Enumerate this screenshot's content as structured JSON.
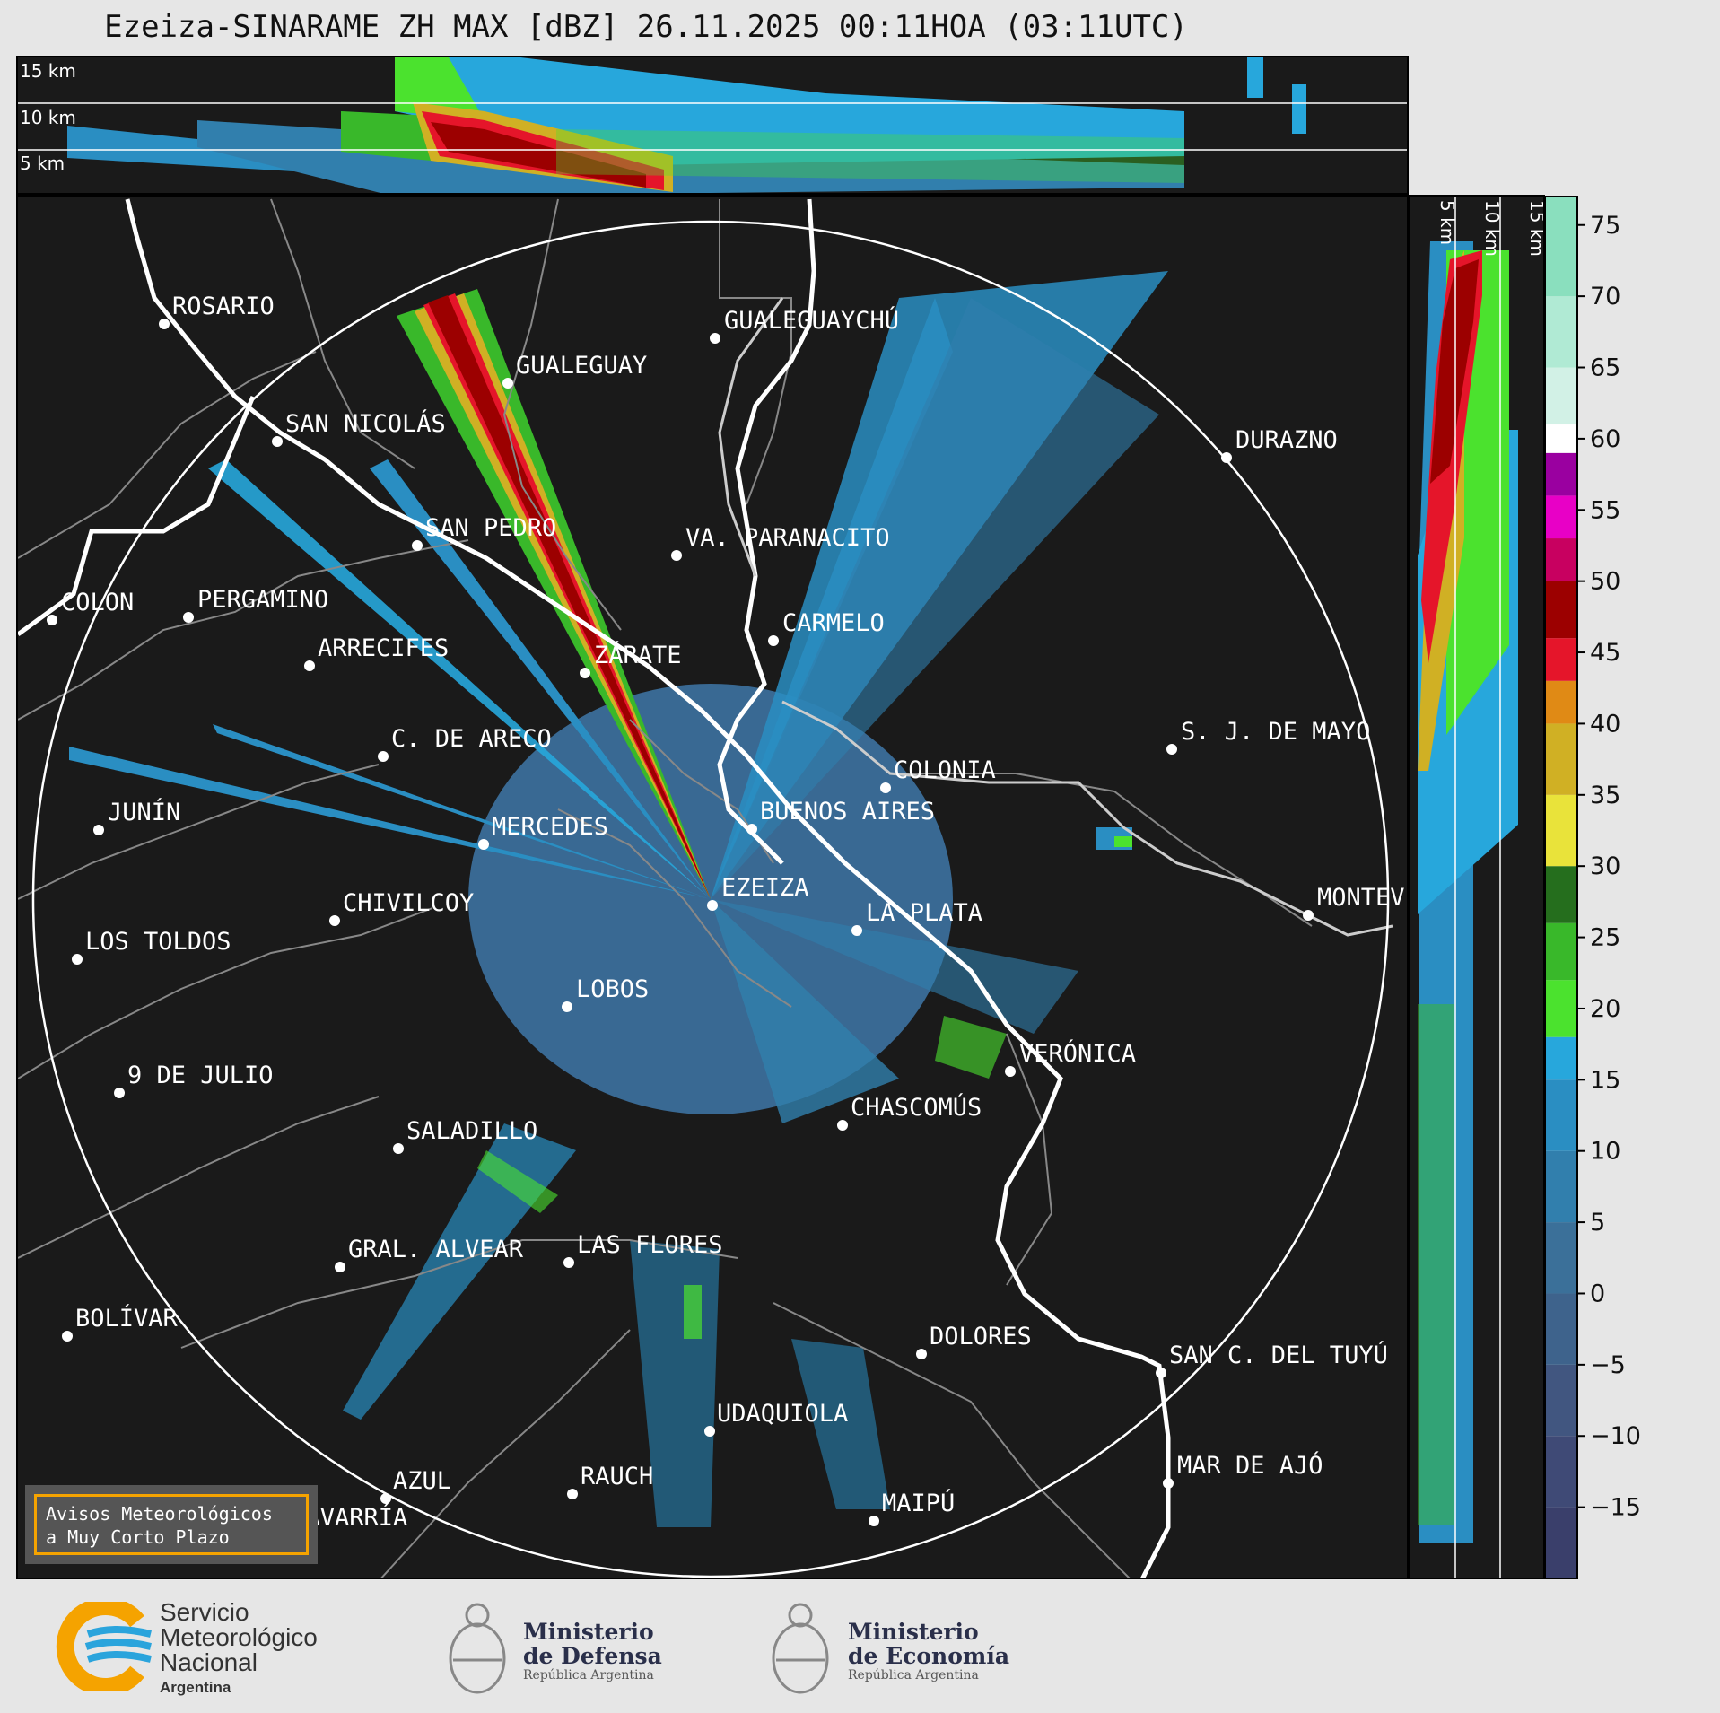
{
  "title": "Ezeiza-SINARAME ZH MAX [dBZ] 26.11.2025 00:11HOA (03:11UTC)",
  "top_panel": {
    "height_labels": [
      "15 km",
      "10 km",
      "5 km"
    ]
  },
  "side_panel": {
    "height_labels": [
      "5 km",
      "10 km",
      "15 km"
    ]
  },
  "cities": [
    {
      "name": "ROSARIO"
    },
    {
      "name": "GUALEGUAYCHÚ"
    },
    {
      "name": "GUALEGUAY"
    },
    {
      "name": "SAN NICOLÁS"
    },
    {
      "name": "DURAZNO"
    },
    {
      "name": "SAN PEDRO"
    },
    {
      "name": "VA. PARANACITO"
    },
    {
      "name": "COLON"
    },
    {
      "name": "PERGAMINO"
    },
    {
      "name": "CARMELO"
    },
    {
      "name": "ARRECIFES"
    },
    {
      "name": "ZÁRATE"
    },
    {
      "name": "C. DE ARECO"
    },
    {
      "name": "S. J. DE MAYO"
    },
    {
      "name": "COLONIA"
    },
    {
      "name": "JUNÍN"
    },
    {
      "name": "BUENOS AIRES"
    },
    {
      "name": "MERCEDES"
    },
    {
      "name": "MONTEVIDEO"
    },
    {
      "name": "CHIVILCOY"
    },
    {
      "name": "EZEIZA"
    },
    {
      "name": "LA PLATA"
    },
    {
      "name": "LOS TOLDOS"
    },
    {
      "name": "LOBOS"
    },
    {
      "name": "VERÓNICA"
    },
    {
      "name": "9 DE JULIO"
    },
    {
      "name": "CHASCOMÚS"
    },
    {
      "name": "SALADILLO"
    },
    {
      "name": "GRAL. ALVEAR"
    },
    {
      "name": "LAS FLORES"
    },
    {
      "name": "BOLÍVAR"
    },
    {
      "name": "DOLORES"
    },
    {
      "name": "SAN C. DEL TUYÚ"
    },
    {
      "name": "UDAQUIOLA"
    },
    {
      "name": "MAR DE AJÓ"
    },
    {
      "name": "AZUL"
    },
    {
      "name": "RAUCH"
    },
    {
      "name": "MAIPÚ"
    },
    {
      "name": "OLAVARRÍA"
    }
  ],
  "colorbar": {
    "unit": "dBZ",
    "ticks": [
      "75",
      "70",
      "65",
      "60",
      "55",
      "50",
      "45",
      "40",
      "35",
      "30",
      "25",
      "20",
      "15",
      "10",
      "5",
      "0",
      "−5",
      "−10",
      "−15"
    ],
    "bands": [
      {
        "from": -20,
        "to": -15,
        "color": "#3a3f6b"
      },
      {
        "from": -15,
        "to": -10,
        "color": "#3f4a76"
      },
      {
        "from": -10,
        "to": -5,
        "color": "#415680"
      },
      {
        "from": -5,
        "to": 0,
        "color": "#3e638c"
      },
      {
        "from": 0,
        "to": 5,
        "color": "#3b7099"
      },
      {
        "from": 5,
        "to": 10,
        "color": "#317fad"
      },
      {
        "from": 10,
        "to": 15,
        "color": "#2a8ec2"
      },
      {
        "from": 15,
        "to": 18,
        "color": "#27a7dc"
      },
      {
        "from": 18,
        "to": 22,
        "color": "#4be22e"
      },
      {
        "from": 22,
        "to": 26,
        "color": "#39b82a"
      },
      {
        "from": 26,
        "to": 30,
        "color": "#256e1d"
      },
      {
        "from": 30,
        "to": 35,
        "color": "#e9e33a"
      },
      {
        "from": 35,
        "to": 40,
        "color": "#d0b024"
      },
      {
        "from": 40,
        "to": 43,
        "color": "#e08a15"
      },
      {
        "from": 43,
        "to": 46,
        "color": "#e5152a"
      },
      {
        "from": 46,
        "to": 50,
        "color": "#9c0000"
      },
      {
        "from": 50,
        "to": 53,
        "color": "#c80060"
      },
      {
        "from": 53,
        "to": 56,
        "color": "#e800c6"
      },
      {
        "from": 56,
        "to": 59,
        "color": "#9a00a0"
      },
      {
        "from": 59,
        "to": 61,
        "color": "#ffffff"
      },
      {
        "from": 61,
        "to": 65,
        "color": "#d2f1e6"
      },
      {
        "from": 65,
        "to": 70,
        "color": "#b0ead4"
      },
      {
        "from": 70,
        "to": 77,
        "color": "#8adfbe"
      }
    ]
  },
  "avisos": {
    "line1": "Avisos Meteorológicos",
    "line2": "a Muy Corto Plazo"
  },
  "logos": {
    "smn": {
      "line1": "Servicio",
      "line2": "Meteorológico",
      "line3": "Nacional",
      "line4": "Argentina"
    },
    "defensa": {
      "line1": "Ministerio",
      "line2": "de Defensa",
      "line3": "República Argentina"
    },
    "economia": {
      "line1": "Ministerio",
      "line2": "de Economía",
      "line3": "República Argentina"
    }
  }
}
